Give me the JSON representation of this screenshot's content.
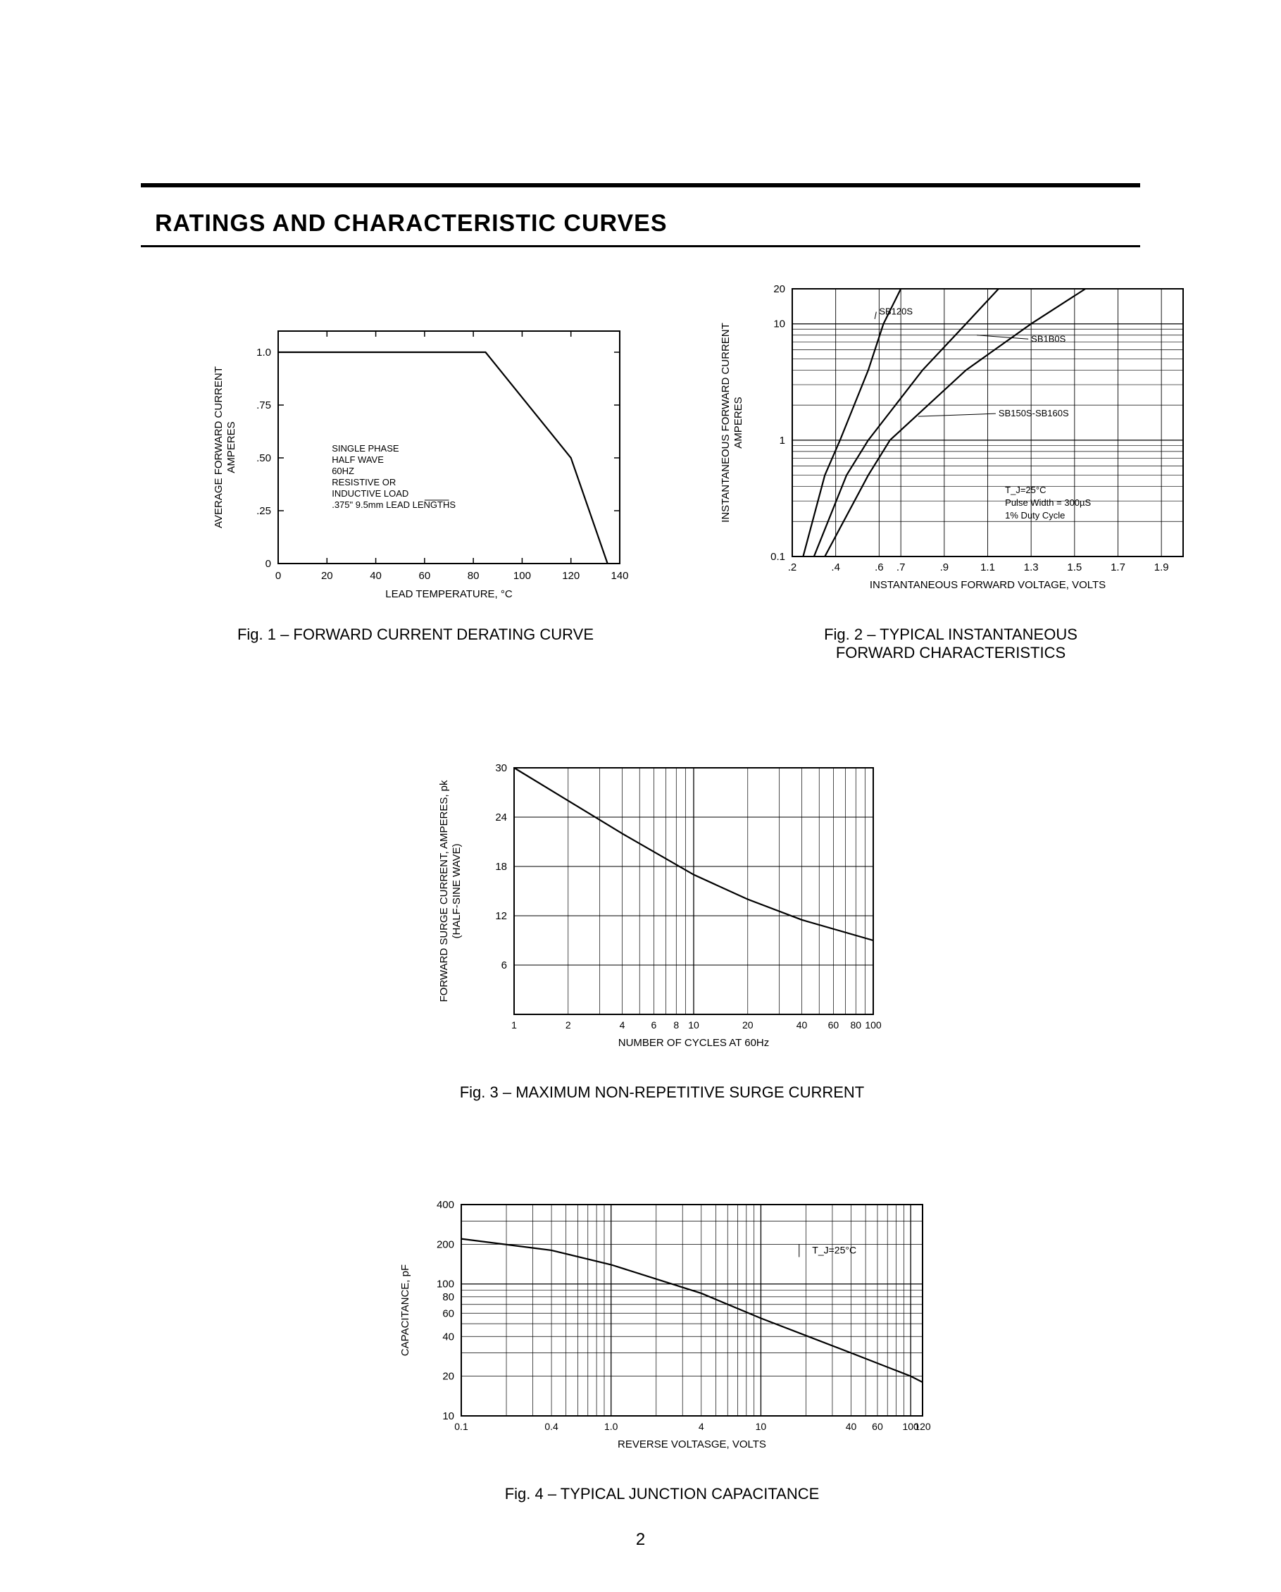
{
  "section_title": "RATINGS AND CHARACTERISTIC CURVES",
  "page_number": "2",
  "fig1": {
    "caption": "Fig. 1 – FORWARD CURRENT DERATING CURVE",
    "x_label": "LEAD TEMPERATURE, °C",
    "y_label": "AVERAGE FORWARD CURRENT\nAMPERES",
    "x_ticks": [
      0,
      20,
      40,
      60,
      80,
      100,
      120,
      140
    ],
    "y_ticks": [
      0,
      0.25,
      0.5,
      0.75,
      1.0
    ],
    "y_tick_labels": [
      "0",
      ".25",
      ".50",
      ".75",
      "1.0"
    ],
    "xlim": [
      0,
      140
    ],
    "ylim": [
      0,
      1.1
    ],
    "bg": "#ffffff",
    "axis_color": "#000000",
    "line_color": "#000000",
    "line_width": 2.2,
    "notes": [
      "SINGLE PHASE",
      "HALF WAVE",
      "60HZ",
      "RESISTIVE OR",
      "INDUCTIVE LOAD",
      ".375\" 9.5mm LEAD LENGTHS"
    ],
    "note_fontsize": 13,
    "label_fontsize": 15,
    "curve": [
      {
        "x": 0,
        "y": 1.0
      },
      {
        "x": 85,
        "y": 1.0
      },
      {
        "x": 120,
        "y": 0.5
      },
      {
        "x": 135,
        "y": 0.0
      }
    ]
  },
  "fig2": {
    "caption": "Fig. 2 – TYPICAL INSTANTANEOUS\nFORWARD CHARACTERISTICS",
    "x_label": "INSTANTANEOUS FORWARD VOLTAGE, VOLTS",
    "y_label": "INSTANTANEOUS FORWARD CURRENT\nAMPERES",
    "x_ticks": [
      0.2,
      0.4,
      0.6,
      0.7,
      0.9,
      1.1,
      1.3,
      1.5,
      1.7,
      1.9
    ],
    "x_tick_labels": [
      ".2",
      ".4",
      ".6",
      ".7",
      ".9",
      "1.1",
      "1.3",
      "1.5",
      "1.7",
      "1.9"
    ],
    "y_ticks_major": [
      0.1,
      1.0,
      10,
      20
    ],
    "xlim": [
      0.2,
      2.0
    ],
    "ylim": [
      0.1,
      20
    ],
    "log_y": true,
    "bg": "#ffffff",
    "axis_color": "#000000",
    "line_color": "#000000",
    "line_width": 2.2,
    "label_fontsize": 15,
    "note_fontsize": 13,
    "series": [
      {
        "name": "SB120S",
        "points": [
          {
            "x": 0.25,
            "y": 0.1
          },
          {
            "x": 0.35,
            "y": 0.5
          },
          {
            "x": 0.42,
            "y": 1.0
          },
          {
            "x": 0.55,
            "y": 4.0
          },
          {
            "x": 0.62,
            "y": 10
          },
          {
            "x": 0.7,
            "y": 20
          }
        ]
      },
      {
        "name": "SB1B0S",
        "points": [
          {
            "x": 0.3,
            "y": 0.1
          },
          {
            "x": 0.45,
            "y": 0.5
          },
          {
            "x": 0.55,
            "y": 1.0
          },
          {
            "x": 0.8,
            "y": 4.0
          },
          {
            "x": 1.0,
            "y": 10
          },
          {
            "x": 1.15,
            "y": 20
          }
        ]
      },
      {
        "name": "SB150S-SB160S",
        "points": [
          {
            "x": 0.35,
            "y": 0.1
          },
          {
            "x": 0.55,
            "y": 0.5
          },
          {
            "x": 0.65,
            "y": 1.0
          },
          {
            "x": 1.0,
            "y": 4.0
          },
          {
            "x": 1.3,
            "y": 10
          },
          {
            "x": 1.55,
            "y": 20
          }
        ]
      }
    ],
    "annotations": [
      "SB120S",
      "SB1B0S",
      "SB150S-SB160S"
    ],
    "conditions": [
      "T_J=25°C",
      "Pulse Width = 300µS",
      "1% Duty Cycle"
    ]
  },
  "fig3": {
    "caption": "Fig. 3 – MAXIMUM NON-REPETITIVE SURGE CURRENT",
    "x_label": "NUMBER OF CYCLES AT 60Hz",
    "y_label": "FORWARD SURGE CURRENT, AMPERES, pk\n(HALF-SINE WAVE)",
    "x_ticks": [
      1,
      2,
      4,
      6,
      8,
      10,
      20,
      40,
      60,
      80,
      100
    ],
    "x_tick_labels": [
      "1",
      "2",
      "4",
      "6",
      "8",
      "10",
      "20",
      "40",
      "60",
      "80",
      "100"
    ],
    "y_ticks": [
      6,
      12,
      18,
      24,
      30
    ],
    "xlim": [
      1,
      100
    ],
    "ylim": [
      0,
      30
    ],
    "log_x": true,
    "bg": "#ffffff",
    "axis_color": "#000000",
    "line_color": "#000000",
    "line_width": 2.2,
    "label_fontsize": 15,
    "curve": [
      {
        "x": 1,
        "y": 30
      },
      {
        "x": 2,
        "y": 26
      },
      {
        "x": 4,
        "y": 22
      },
      {
        "x": 10,
        "y": 17
      },
      {
        "x": 20,
        "y": 14
      },
      {
        "x": 40,
        "y": 11.5
      },
      {
        "x": 100,
        "y": 9
      }
    ]
  },
  "fig4": {
    "caption": "Fig. 4 – TYPICAL JUNCTION CAPACITANCE",
    "x_label": "REVERSE VOLTASGE, VOLTS",
    "y_label": "CAPACITANCE, pF",
    "x_ticks": [
      0.1,
      0.4,
      1.0,
      4,
      10,
      40,
      60,
      100,
      120
    ],
    "x_tick_labels": [
      "0.1",
      "0.4",
      "1.0",
      "4",
      "10",
      "40",
      "60",
      "100",
      "120"
    ],
    "y_ticks": [
      10,
      20,
      40,
      60,
      80,
      100,
      200,
      400
    ],
    "xlim": [
      0.1,
      120
    ],
    "ylim": [
      10,
      400
    ],
    "log_x": true,
    "log_y": true,
    "bg": "#ffffff",
    "axis_color": "#000000",
    "line_color": "#000000",
    "line_width": 2.2,
    "label_fontsize": 15,
    "annotation": "T_J=25°C",
    "curve": [
      {
        "x": 0.1,
        "y": 220
      },
      {
        "x": 0.4,
        "y": 180
      },
      {
        "x": 1.0,
        "y": 140
      },
      {
        "x": 4,
        "y": 85
      },
      {
        "x": 10,
        "y": 55
      },
      {
        "x": 40,
        "y": 30
      },
      {
        "x": 100,
        "y": 20
      },
      {
        "x": 120,
        "y": 18
      }
    ]
  }
}
